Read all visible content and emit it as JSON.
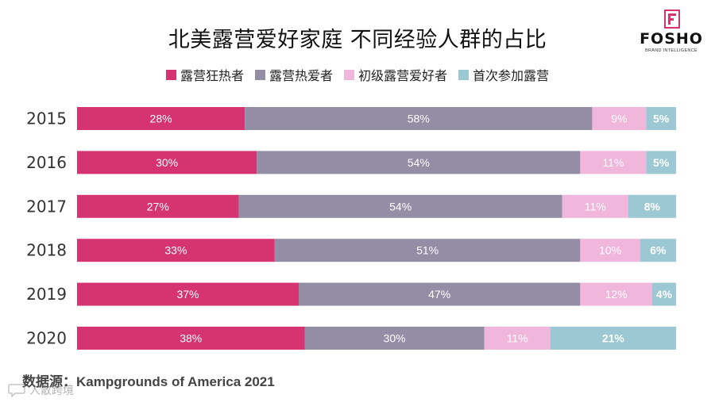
{
  "chart_data": {
    "type": "bar",
    "orientation": "horizontal",
    "stacked": true,
    "title": "北美露营爱好家庭 不同经验人群的占比",
    "categories": [
      "2015",
      "2016",
      "2017",
      "2018",
      "2019",
      "2020"
    ],
    "series": [
      {
        "name": "露营狂热者",
        "color": "#D63471",
        "values": [
          28,
          30,
          27,
          33,
          37,
          38
        ]
      },
      {
        "name": "露营热爱者",
        "color": "#948DA6",
        "values": [
          58,
          54,
          54,
          51,
          47,
          30
        ]
      },
      {
        "name": "初级露营爱好者",
        "color": "#F0B6DC",
        "values": [
          9,
          11,
          11,
          10,
          12,
          11
        ]
      },
      {
        "name": "首次参加露营",
        "color": "#9CC8D4",
        "values": [
          5,
          5,
          8,
          6,
          4,
          21
        ]
      }
    ],
    "value_suffix": "%",
    "xlim": [
      0,
      100
    ],
    "legend_position": "top-center"
  },
  "logo": {
    "text": "FOSHO",
    "subtitle": "BRAND INTELLIGENCE",
    "icon": "f-logo-mark-icon"
  },
  "source": "数据源：Kampgrounds of America 2021",
  "watermark": {
    "text": "人散跨境",
    "icon": "speech-bubble-icon"
  }
}
